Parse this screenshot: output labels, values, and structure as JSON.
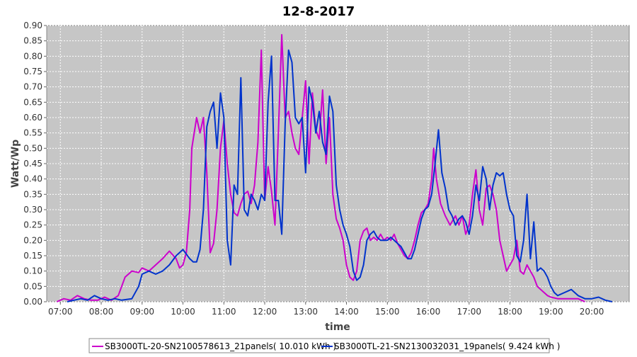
{
  "chart_data": {
    "type": "line",
    "title": "12-8-2017",
    "xlabel": "time",
    "ylabel": "Watt/Wp",
    "ylim": [
      0,
      0.9
    ],
    "xlim": [
      "06:40",
      "20:55"
    ],
    "y_ticks": [
      "0.00",
      "0.05",
      "0.10",
      "0.15",
      "0.20",
      "0.25",
      "0.30",
      "0.35",
      "0.40",
      "0.45",
      "0.50",
      "0.55",
      "0.60",
      "0.65",
      "0.70",
      "0.75",
      "0.80",
      "0.85",
      "0.90"
    ],
    "x_ticks": [
      "07:00",
      "08:00",
      "09:00",
      "10:00",
      "11:00",
      "12:00",
      "13:00",
      "14:00",
      "15:00",
      "16:00",
      "17:00",
      "18:00",
      "19:00",
      "20:00"
    ],
    "grid": true,
    "legend_position": "bottom",
    "series": [
      {
        "name": "SB3000TL-20-SN2100578613_21panels( 10.010 kWh )",
        "color": "#cc00cc",
        "points": [
          [
            "06:55",
            0.0
          ],
          [
            "07:05",
            0.01
          ],
          [
            "07:15",
            0.005
          ],
          [
            "07:25",
            0.02
          ],
          [
            "07:35",
            0.01
          ],
          [
            "07:45",
            0.005
          ],
          [
            "07:55",
            0.005
          ],
          [
            "08:05",
            0.015
          ],
          [
            "08:15",
            0.005
          ],
          [
            "08:25",
            0.02
          ],
          [
            "08:35",
            0.08
          ],
          [
            "08:45",
            0.1
          ],
          [
            "08:55",
            0.095
          ],
          [
            "09:00",
            0.11
          ],
          [
            "09:10",
            0.1
          ],
          [
            "09:20",
            0.12
          ],
          [
            "09:30",
            0.14
          ],
          [
            "09:40",
            0.165
          ],
          [
            "09:50",
            0.14
          ],
          [
            "09:55",
            0.11
          ],
          [
            "10:00",
            0.12
          ],
          [
            "10:05",
            0.16
          ],
          [
            "10:10",
            0.3
          ],
          [
            "10:13",
            0.5
          ],
          [
            "10:20",
            0.6
          ],
          [
            "10:25",
            0.55
          ],
          [
            "10:30",
            0.6
          ],
          [
            "10:35",
            0.42
          ],
          [
            "10:40",
            0.16
          ],
          [
            "10:45",
            0.19
          ],
          [
            "10:50",
            0.3
          ],
          [
            "10:55",
            0.5
          ],
          [
            "11:00",
            0.59
          ],
          [
            "11:05",
            0.45
          ],
          [
            "11:10",
            0.35
          ],
          [
            "11:15",
            0.29
          ],
          [
            "11:20",
            0.28
          ],
          [
            "11:25",
            0.32
          ],
          [
            "11:30",
            0.35
          ],
          [
            "11:35",
            0.36
          ],
          [
            "11:40",
            0.32
          ],
          [
            "11:45",
            0.38
          ],
          [
            "11:50",
            0.52
          ],
          [
            "11:55",
            0.82
          ],
          [
            "12:00",
            0.33
          ],
          [
            "12:05",
            0.44
          ],
          [
            "12:10",
            0.36
          ],
          [
            "12:15",
            0.25
          ],
          [
            "12:20",
            0.55
          ],
          [
            "12:25",
            0.87
          ],
          [
            "12:30",
            0.6
          ],
          [
            "12:35",
            0.62
          ],
          [
            "12:40",
            0.55
          ],
          [
            "12:45",
            0.5
          ],
          [
            "12:50",
            0.48
          ],
          [
            "12:55",
            0.6
          ],
          [
            "13:00",
            0.72
          ],
          [
            "13:05",
            0.45
          ],
          [
            "13:10",
            0.68
          ],
          [
            "13:15",
            0.56
          ],
          [
            "13:20",
            0.53
          ],
          [
            "13:25",
            0.69
          ],
          [
            "13:30",
            0.45
          ],
          [
            "13:35",
            0.6
          ],
          [
            "13:40",
            0.35
          ],
          [
            "13:45",
            0.27
          ],
          [
            "13:50",
            0.24
          ],
          [
            "13:55",
            0.2
          ],
          [
            "14:00",
            0.12
          ],
          [
            "14:05",
            0.08
          ],
          [
            "14:10",
            0.07
          ],
          [
            "14:15",
            0.1
          ],
          [
            "14:20",
            0.2
          ],
          [
            "14:25",
            0.23
          ],
          [
            "14:30",
            0.24
          ],
          [
            "14:35",
            0.2
          ],
          [
            "14:40",
            0.21
          ],
          [
            "14:45",
            0.2
          ],
          [
            "14:50",
            0.22
          ],
          [
            "14:55",
            0.2
          ],
          [
            "15:00",
            0.21
          ],
          [
            "15:05",
            0.2
          ],
          [
            "15:10",
            0.22
          ],
          [
            "15:15",
            0.19
          ],
          [
            "15:20",
            0.17
          ],
          [
            "15:25",
            0.15
          ],
          [
            "15:30",
            0.14
          ],
          [
            "15:35",
            0.16
          ],
          [
            "15:40",
            0.2
          ],
          [
            "15:45",
            0.25
          ],
          [
            "15:50",
            0.29
          ],
          [
            "15:55",
            0.3
          ],
          [
            "16:00",
            0.32
          ],
          [
            "16:05",
            0.4
          ],
          [
            "16:08",
            0.5
          ],
          [
            "16:12",
            0.4
          ],
          [
            "16:18",
            0.32
          ],
          [
            "16:25",
            0.28
          ],
          [
            "16:32",
            0.25
          ],
          [
            "16:40",
            0.28
          ],
          [
            "16:45",
            0.25
          ],
          [
            "16:50",
            0.28
          ],
          [
            "16:55",
            0.22
          ],
          [
            "17:00",
            0.25
          ],
          [
            "17:05",
            0.35
          ],
          [
            "17:10",
            0.43
          ],
          [
            "17:15",
            0.3
          ],
          [
            "17:20",
            0.25
          ],
          [
            "17:25",
            0.37
          ],
          [
            "17:30",
            0.38
          ],
          [
            "17:35",
            0.35
          ],
          [
            "17:40",
            0.3
          ],
          [
            "17:45",
            0.2
          ],
          [
            "17:50",
            0.15
          ],
          [
            "17:55",
            0.1
          ],
          [
            "18:00",
            0.12
          ],
          [
            "18:05",
            0.14
          ],
          [
            "18:10",
            0.2
          ],
          [
            "18:15",
            0.1
          ],
          [
            "18:20",
            0.09
          ],
          [
            "18:25",
            0.12
          ],
          [
            "18:30",
            0.1
          ],
          [
            "18:35",
            0.08
          ],
          [
            "18:40",
            0.05
          ],
          [
            "18:45",
            0.04
          ],
          [
            "18:50",
            0.03
          ],
          [
            "18:55",
            0.02
          ],
          [
            "19:00",
            0.015
          ],
          [
            "19:10",
            0.01
          ],
          [
            "19:20",
            0.01
          ],
          [
            "19:30",
            0.01
          ],
          [
            "19:40",
            0.01
          ],
          [
            "19:50",
            0.0
          ]
        ]
      },
      {
        "name": "SB3000TL-21-SN2130032031_19panels( 9.424 kWh )",
        "color": "#0033cc",
        "points": [
          [
            "07:10",
            0.0
          ],
          [
            "07:20",
            0.005
          ],
          [
            "07:30",
            0.01
          ],
          [
            "07:40",
            0.005
          ],
          [
            "07:50",
            0.02
          ],
          [
            "08:00",
            0.01
          ],
          [
            "08:10",
            0.005
          ],
          [
            "08:20",
            0.01
          ],
          [
            "08:30",
            0.005
          ],
          [
            "08:45",
            0.01
          ],
          [
            "08:55",
            0.05
          ],
          [
            "09:00",
            0.09
          ],
          [
            "09:10",
            0.1
          ],
          [
            "09:20",
            0.09
          ],
          [
            "09:30",
            0.1
          ],
          [
            "09:40",
            0.12
          ],
          [
            "09:50",
            0.15
          ],
          [
            "10:00",
            0.17
          ],
          [
            "10:10",
            0.14
          ],
          [
            "10:15",
            0.13
          ],
          [
            "10:20",
            0.13
          ],
          [
            "10:25",
            0.17
          ],
          [
            "10:30",
            0.3
          ],
          [
            "10:35",
            0.57
          ],
          [
            "10:40",
            0.62
          ],
          [
            "10:45",
            0.65
          ],
          [
            "10:50",
            0.5
          ],
          [
            "10:55",
            0.68
          ],
          [
            "11:00",
            0.6
          ],
          [
            "11:05",
            0.2
          ],
          [
            "11:10",
            0.12
          ],
          [
            "11:15",
            0.38
          ],
          [
            "11:20",
            0.35
          ],
          [
            "11:25",
            0.73
          ],
          [
            "11:30",
            0.3
          ],
          [
            "11:35",
            0.28
          ],
          [
            "11:40",
            0.35
          ],
          [
            "11:45",
            0.33
          ],
          [
            "11:50",
            0.3
          ],
          [
            "11:55",
            0.35
          ],
          [
            "12:00",
            0.33
          ],
          [
            "12:05",
            0.65
          ],
          [
            "12:10",
            0.8
          ],
          [
            "12:15",
            0.33
          ],
          [
            "12:20",
            0.33
          ],
          [
            "12:25",
            0.22
          ],
          [
            "12:30",
            0.58
          ],
          [
            "12:35",
            0.82
          ],
          [
            "12:40",
            0.78
          ],
          [
            "12:45",
            0.6
          ],
          [
            "12:50",
            0.58
          ],
          [
            "12:55",
            0.6
          ],
          [
            "13:00",
            0.42
          ],
          [
            "13:05",
            0.7
          ],
          [
            "13:10",
            0.65
          ],
          [
            "13:15",
            0.55
          ],
          [
            "13:20",
            0.62
          ],
          [
            "13:25",
            0.52
          ],
          [
            "13:30",
            0.48
          ],
          [
            "13:35",
            0.67
          ],
          [
            "13:40",
            0.62
          ],
          [
            "13:45",
            0.38
          ],
          [
            "13:50",
            0.3
          ],
          [
            "13:55",
            0.25
          ],
          [
            "14:00",
            0.22
          ],
          [
            "14:05",
            0.18
          ],
          [
            "14:10",
            0.1
          ],
          [
            "14:15",
            0.07
          ],
          [
            "14:20",
            0.08
          ],
          [
            "14:25",
            0.12
          ],
          [
            "14:30",
            0.2
          ],
          [
            "14:35",
            0.22
          ],
          [
            "14:40",
            0.23
          ],
          [
            "14:45",
            0.21
          ],
          [
            "14:50",
            0.2
          ],
          [
            "14:55",
            0.2
          ],
          [
            "15:00",
            0.2
          ],
          [
            "15:05",
            0.21
          ],
          [
            "15:10",
            0.2
          ],
          [
            "15:15",
            0.19
          ],
          [
            "15:20",
            0.18
          ],
          [
            "15:25",
            0.16
          ],
          [
            "15:30",
            0.14
          ],
          [
            "15:35",
            0.14
          ],
          [
            "15:40",
            0.17
          ],
          [
            "15:45",
            0.22
          ],
          [
            "15:50",
            0.27
          ],
          [
            "15:55",
            0.3
          ],
          [
            "16:00",
            0.31
          ],
          [
            "16:05",
            0.35
          ],
          [
            "16:10",
            0.45
          ],
          [
            "16:15",
            0.56
          ],
          [
            "16:20",
            0.42
          ],
          [
            "16:25",
            0.37
          ],
          [
            "16:30",
            0.3
          ],
          [
            "16:35",
            0.28
          ],
          [
            "16:40",
            0.25
          ],
          [
            "16:45",
            0.27
          ],
          [
            "16:50",
            0.28
          ],
          [
            "16:55",
            0.26
          ],
          [
            "17:00",
            0.22
          ],
          [
            "17:05",
            0.28
          ],
          [
            "17:10",
            0.38
          ],
          [
            "17:15",
            0.33
          ],
          [
            "17:20",
            0.44
          ],
          [
            "17:25",
            0.4
          ],
          [
            "17:30",
            0.3
          ],
          [
            "17:35",
            0.38
          ],
          [
            "17:40",
            0.42
          ],
          [
            "17:45",
            0.41
          ],
          [
            "17:50",
            0.42
          ],
          [
            "17:55",
            0.35
          ],
          [
            "18:00",
            0.3
          ],
          [
            "18:05",
            0.28
          ],
          [
            "18:10",
            0.15
          ],
          [
            "18:15",
            0.13
          ],
          [
            "18:20",
            0.2
          ],
          [
            "18:25",
            0.35
          ],
          [
            "18:30",
            0.14
          ],
          [
            "18:35",
            0.26
          ],
          [
            "18:40",
            0.1
          ],
          [
            "18:45",
            0.11
          ],
          [
            "18:50",
            0.1
          ],
          [
            "18:55",
            0.08
          ],
          [
            "19:00",
            0.05
          ],
          [
            "19:05",
            0.03
          ],
          [
            "19:10",
            0.02
          ],
          [
            "19:20",
            0.03
          ],
          [
            "19:30",
            0.04
          ],
          [
            "19:40",
            0.02
          ],
          [
            "19:50",
            0.01
          ],
          [
            "20:00",
            0.01
          ],
          [
            "20:10",
            0.015
          ],
          [
            "20:20",
            0.005
          ],
          [
            "20:30",
            0.0
          ]
        ]
      }
    ]
  }
}
